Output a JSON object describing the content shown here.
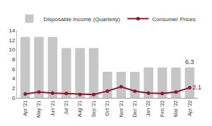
{
  "chart_data": {
    "type": "bar",
    "categories": [
      "Apr '21",
      "May '21",
      "Jun '21",
      "Jul '21",
      "Aug '21",
      "Sep '21",
      "Oct '21",
      "Nov '21",
      "Dec '21",
      "Jan '22",
      "Feb '22",
      "Mar '22",
      "Apr '22"
    ],
    "series": [
      {
        "name": "Disposable Income (Quarterly)",
        "type": "bar",
        "color": "#c6c6c6",
        "values": [
          12.6,
          12.6,
          12.6,
          10.3,
          10.3,
          10.3,
          5.4,
          5.4,
          5.4,
          6.3,
          6.3,
          6.3,
          6.3
        ],
        "value_labels": [
          null,
          null,
          null,
          null,
          null,
          null,
          null,
          null,
          null,
          null,
          null,
          null,
          "6.3"
        ]
      },
      {
        "name": "Consumer Prices",
        "type": "line",
        "color": "#8b1a2e",
        "marker": "circle",
        "values": [
          0.8,
          1.2,
          1.0,
          0.9,
          0.7,
          0.7,
          1.4,
          2.3,
          1.4,
          1.0,
          0.9,
          1.2,
          2.1
        ],
        "value_labels": [
          null,
          null,
          null,
          null,
          null,
          null,
          null,
          null,
          null,
          null,
          null,
          null,
          "2.1"
        ]
      }
    ],
    "ylim": [
      0,
      14
    ],
    "yticks": [
      0,
      2,
      4,
      6,
      8,
      10,
      12,
      14
    ],
    "grid": false,
    "legend": "top"
  }
}
